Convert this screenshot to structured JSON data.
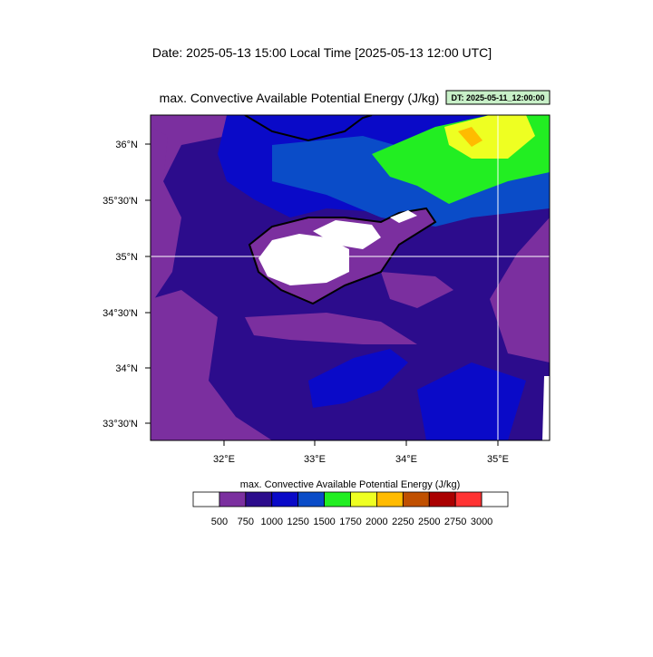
{
  "header": {
    "date": "Date: 2025-05-13  15:00 Local Time [2025-05-13  12:00 UTC]"
  },
  "map": {
    "title": "max. Convective Available Potential Energy   (J/kg)",
    "dt_label": "DT: 2025-05-11_12:00:00",
    "lat_labels": [
      "36°N",
      "35°30'N",
      "35°N",
      "34°30'N",
      "34°N",
      "33°30'N"
    ],
    "lon_labels": [
      "32°E",
      "33°E",
      "34°E",
      "35°E"
    ]
  },
  "colorbar": {
    "title": "max. Convective Available Potential Energy  (J/kg)",
    "levels": [
      500,
      750,
      1000,
      1250,
      1500,
      1750,
      2000,
      2250,
      2500,
      2750,
      3000
    ],
    "colors": [
      "#ffffff",
      "#7b2f9f",
      "#2c0c8c",
      "#0a0ac8",
      "#0a4cc8",
      "#22ee22",
      "#eeff22",
      "#ffbb00",
      "#c05000",
      "#aa0000",
      "#ff3333",
      "#ffffff"
    ]
  }
}
